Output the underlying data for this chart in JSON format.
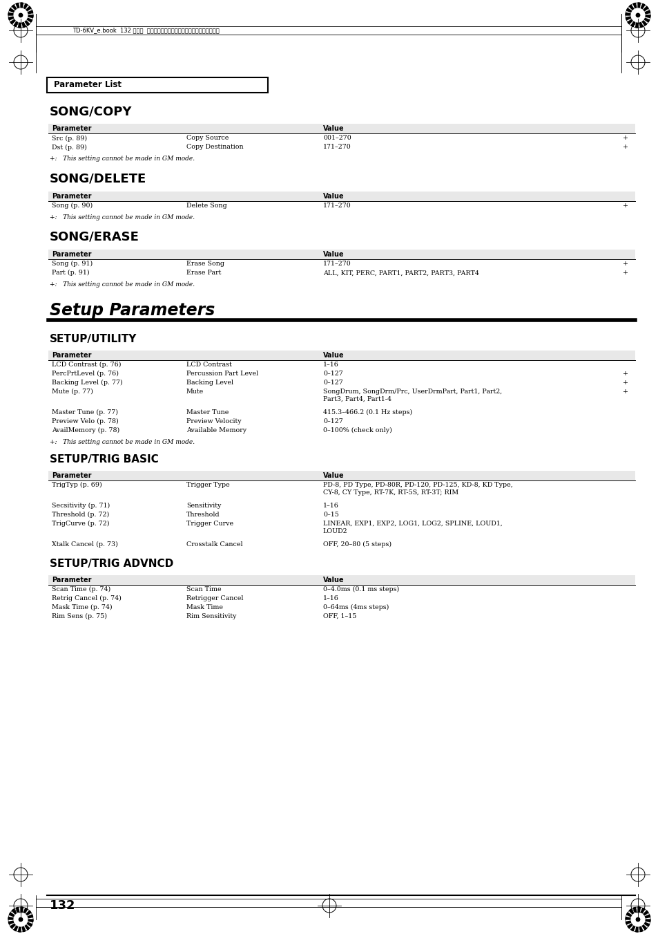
{
  "bg_color": "#ffffff",
  "header_text": "TD-6KV_e.book  132 ページ  ２００５年１月２４日　月曜日　午後７晎４分",
  "param_list_title": "Parameter List",
  "sections": [
    {
      "title": "SONG/COPY",
      "rows": [
        {
          "col1": "Src (p. 89)",
          "col2": "Copy Source",
          "col3": "001–270",
          "plus": true
        },
        {
          "col1": "Dst (p. 89)",
          "col2": "Copy Destination",
          "col3": "171–270",
          "plus": true
        }
      ],
      "note": "+:   This setting cannot be made in GM mode."
    },
    {
      "title": "SONG/DELETE",
      "rows": [
        {
          "col1": "Song (p. 90)",
          "col2": "Delete Song",
          "col3": "171–270",
          "plus": true
        }
      ],
      "note": "+:   This setting cannot be made in GM mode."
    },
    {
      "title": "SONG/ERASE",
      "rows": [
        {
          "col1": "Song (p. 91)",
          "col2": "Erase Song",
          "col3": "171–270",
          "plus": true
        },
        {
          "col1": "Part (p. 91)",
          "col2": "Erase Part",
          "col3": "ALL, KIT, PERC, PART1, PART2, PART3, PART4",
          "plus": true
        }
      ],
      "note": "+:   This setting cannot be made in GM mode."
    }
  ],
  "setup_title": "Setup Parameters",
  "setup_sections": [
    {
      "title": "SETUP/UTILITY",
      "rows": [
        {
          "col1": "LCD Contrast (p. 76)",
          "col2": "LCD Contrast",
          "col3": "1–16",
          "plus": false
        },
        {
          "col1": "PercPrtLevel (p. 76)",
          "col2": "Percussion Part Level",
          "col3": "0–127",
          "plus": true
        },
        {
          "col1": "Backing Level (p. 77)",
          "col2": "Backing Level",
          "col3": "0–127",
          "plus": true
        },
        {
          "col1": "Mute (p. 77)",
          "col2": "Mute",
          "col3": "SongDrum, SongDrm/Prc, UserDrmPart, Part1, Part2,\nPart3, Part4, Part1-4",
          "plus": true
        },
        {
          "col1": "",
          "col2": "",
          "col3": "",
          "plus": false
        },
        {
          "col1": "Master Tune (p. 77)",
          "col2": "Master Tune",
          "col3": "415.3–466.2 (0.1 Hz steps)",
          "plus": false
        },
        {
          "col1": "Preview Velo (p. 78)",
          "col2": "Preview Velocity",
          "col3": "0–127",
          "plus": false
        },
        {
          "col1": "AvailMemory (p. 78)",
          "col2": "Available Memory",
          "col3": "0–100% (check only)",
          "plus": false
        }
      ],
      "note": "+:   This setting cannot be made in GM mode."
    },
    {
      "title": "SETUP/TRIG BASIC",
      "rows": [
        {
          "col1": "TrigTyp (p. 69)",
          "col2": "Trigger Type",
          "col3": "PD-8, PD Type, PD-80R, PD-120, PD-125, KD-8, KD Type,\nCY-8, CY Type, RT-7K, RT-5S, RT-3T; RIM",
          "plus": false
        },
        {
          "col1": "",
          "col2": "",
          "col3": "",
          "plus": false
        },
        {
          "col1": "Secsitivity (p. 71)",
          "col2": "Sensitivity",
          "col3": "1–16",
          "plus": false
        },
        {
          "col1": "Threshold (p. 72)",
          "col2": "Threshold",
          "col3": "0–15",
          "plus": false
        },
        {
          "col1": "TrigCurve (p. 72)",
          "col2": "Trigger Curve",
          "col3": "LINEAR, EXP1, EXP2, LOG1, LOG2, SPLINE, LOUD1,\nLOUD2",
          "plus": false
        },
        {
          "col1": "",
          "col2": "",
          "col3": "",
          "plus": false
        },
        {
          "col1": "Xtalk Cancel (p. 73)",
          "col2": "Crosstalk Cancel",
          "col3": "OFF, 20–80 (5 steps)",
          "plus": false
        }
      ],
      "note": null
    },
    {
      "title": "SETUP/TRIG ADVNCD",
      "rows": [
        {
          "col1": "Scan Time (p. 74)",
          "col2": "Scan Time",
          "col3": "0–4.0ms (0.1 ms steps)",
          "plus": false
        },
        {
          "col1": "Retrig Cancel (p. 74)",
          "col2": "Retrigger Cancel",
          "col3": "1–16",
          "plus": false
        },
        {
          "col1": "Mask Time (p. 74)",
          "col2": "Mask Time",
          "col3": "0–64ms (4ms steps)",
          "plus": false
        },
        {
          "col1": "Rim Sens (p. 75)",
          "col2": "Rim Sensitivity",
          "col3": "OFF, 1–15",
          "plus": false
        }
      ],
      "note": null
    }
  ],
  "page_number": "132"
}
